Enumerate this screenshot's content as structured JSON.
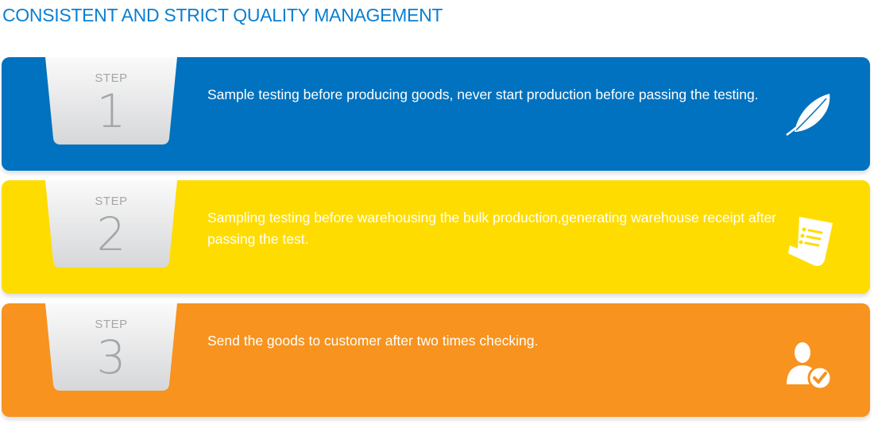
{
  "title": "CONSISTENT AND STRICT QUALITY MANAGEMENT",
  "steps": [
    {
      "label": "STEP",
      "number": "1",
      "text": "Sample testing before producing goods, never start production before passing the testing.",
      "color": "#0072bf",
      "icon": "feather-icon"
    },
    {
      "label": "STEP",
      "number": "2",
      "text": "Sampling testing before  warehousing the bulk production,generating warehouse receipt after passing the test.",
      "color": "#ffdc00",
      "icon": "receipt-icon"
    },
    {
      "label": "STEP",
      "number": "3",
      "text": "Send the goods to customer after two times checking.",
      "color": "#f7931e",
      "icon": "user-check-icon"
    }
  ]
}
